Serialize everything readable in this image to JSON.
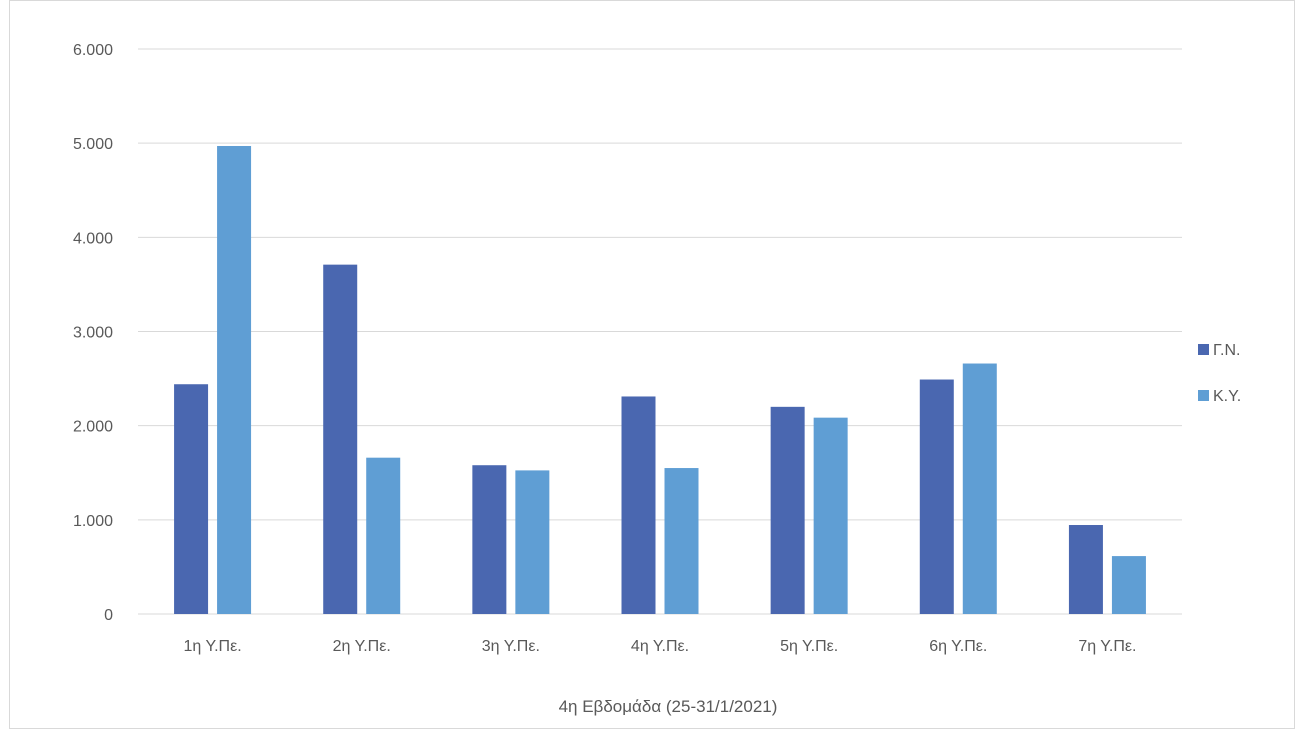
{
  "chart_data": {
    "type": "bar",
    "categories": [
      "1η Υ.Πε.",
      "2η Υ.Πε.",
      "3η Υ.Πε.",
      "4η Υ.Πε.",
      "5η Υ.Πε.",
      "6η Υ.Πε.",
      "7η Υ.Πε."
    ],
    "series": [
      {
        "name": "Γ.Ν.",
        "color": "#4A67B0",
        "values": [
          2440,
          3710,
          1580,
          2310,
          2200,
          2490,
          945
        ]
      },
      {
        "name": "Κ.Υ.",
        "color": "#5F9ED4",
        "values": [
          4970,
          1660,
          1525,
          1550,
          2085,
          2660,
          615
        ]
      }
    ],
    "title": "",
    "xlabel": "4η Εβδομάδα (25-31/1/2021)",
    "ylabel": "",
    "ylim": [
      0,
      6000
    ],
    "yticks": [
      0,
      1000,
      2000,
      3000,
      4000,
      5000,
      6000
    ],
    "ytick_labels": [
      "0",
      "1.000",
      "2.000",
      "3.000",
      "4.000",
      "5.000",
      "6.000"
    ],
    "grid": true,
    "legend_position": "right"
  }
}
